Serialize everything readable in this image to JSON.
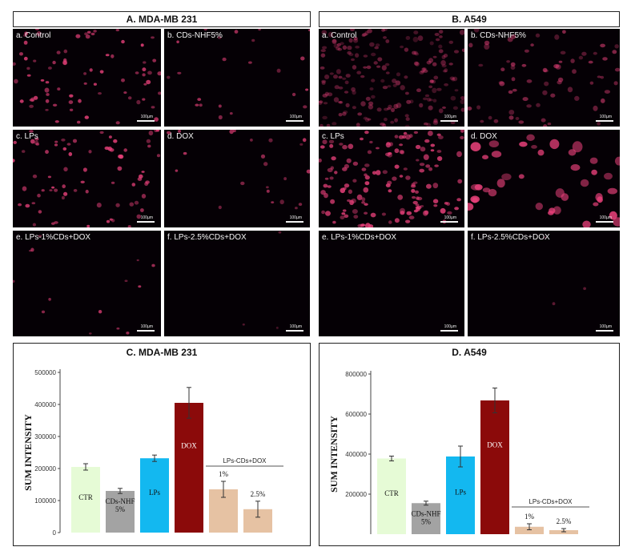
{
  "headers": {
    "left": "A. MDA-MB 231",
    "right": "B. A549"
  },
  "left_panels": [
    {
      "label": "a. Control",
      "scale": "100µm",
      "density": "medium"
    },
    {
      "label": "b. CDs-NHF5%",
      "scale": "100µm",
      "density": "sparse"
    },
    {
      "label": "c. LPs",
      "scale": "100µm",
      "density": "medium"
    },
    {
      "label": "d. DOX",
      "scale": "100µm",
      "density": "sparse"
    },
    {
      "label": "e. LPs-1%CDs+DOX",
      "scale": "100µm",
      "density": "very-sparse"
    },
    {
      "label": "f. LPs-2.5%CDs+DOX",
      "scale": "100µm",
      "density": "near-empty"
    }
  ],
  "right_panels": [
    {
      "label": "a. Control",
      "scale": "100µm",
      "density": "dense-dim"
    },
    {
      "label": "b. CDs-NHF5%",
      "scale": "100µm",
      "density": "medium-dim"
    },
    {
      "label": "c. LPs",
      "scale": "100µm",
      "density": "dense"
    },
    {
      "label": "d. DOX",
      "scale": "100µm",
      "density": "large-bright"
    },
    {
      "label": "e. LPs-1%CDs+DOX",
      "scale": "100µm",
      "density": "empty"
    },
    {
      "label": "f. LPs-2.5%CDs+DOX",
      "scale": "100µm",
      "density": "near-empty"
    }
  ],
  "colors": {
    "CTR": "#e6fbd6",
    "CDs-NHF": "#a3a3a3",
    "LPs": "#13b8f0",
    "DOX": "#8b0a0a",
    "LPs-CDs+DOX": "#e6c2a3",
    "cell": "#e8407a"
  },
  "chart_data": [
    {
      "type": "bar",
      "title": "C. MDA-MB 231",
      "ylabel": "SUM INTENSITY",
      "ylim": [
        0,
        500000
      ],
      "yticks": [
        "0",
        "100000",
        "200000",
        "300000",
        "400000",
        "500000"
      ],
      "group_label": "LPs-CDs+DOX",
      "bars": [
        {
          "label": "CTR",
          "value": 205000,
          "error": 10000,
          "color": "#e6fbd6"
        },
        {
          "label": "CDs-NHF\n5%",
          "value": 130000,
          "error": 8000,
          "color": "#a3a3a3"
        },
        {
          "label": "LPs",
          "value": 232000,
          "error": 10000,
          "color": "#13b8f0"
        },
        {
          "label": "DOX",
          "value": 405000,
          "error": 48000,
          "color": "#8b0a0a"
        },
        {
          "label": "1%",
          "value": 135000,
          "error": 25000,
          "color": "#e6c2a3"
        },
        {
          "label": "2.5%",
          "value": 73000,
          "error": 25000,
          "color": "#e6c2a3"
        }
      ]
    },
    {
      "type": "bar",
      "title": "D. A549",
      "ylabel": "SUM INTENSITY",
      "ylim": [
        0,
        800000
      ],
      "yticks": [
        "200000",
        "400000",
        "600000",
        "800000"
      ],
      "group_label": "LPs-CDs+DOX",
      "bars": [
        {
          "label": "CTR",
          "value": 378000,
          "error": 12000,
          "color": "#e6fbd6"
        },
        {
          "label": "CDs-NHF\n5%",
          "value": 155000,
          "error": 10000,
          "color": "#a3a3a3"
        },
        {
          "label": "LPs",
          "value": 388000,
          "error": 52000,
          "color": "#13b8f0"
        },
        {
          "label": "DOX",
          "value": 668000,
          "error": 62000,
          "color": "#8b0a0a"
        },
        {
          "label": "1%",
          "value": 37000,
          "error": 15000,
          "color": "#e6c2a3"
        },
        {
          "label": "2.5%",
          "value": 20000,
          "error": 8000,
          "color": "#e6c2a3"
        }
      ]
    }
  ]
}
